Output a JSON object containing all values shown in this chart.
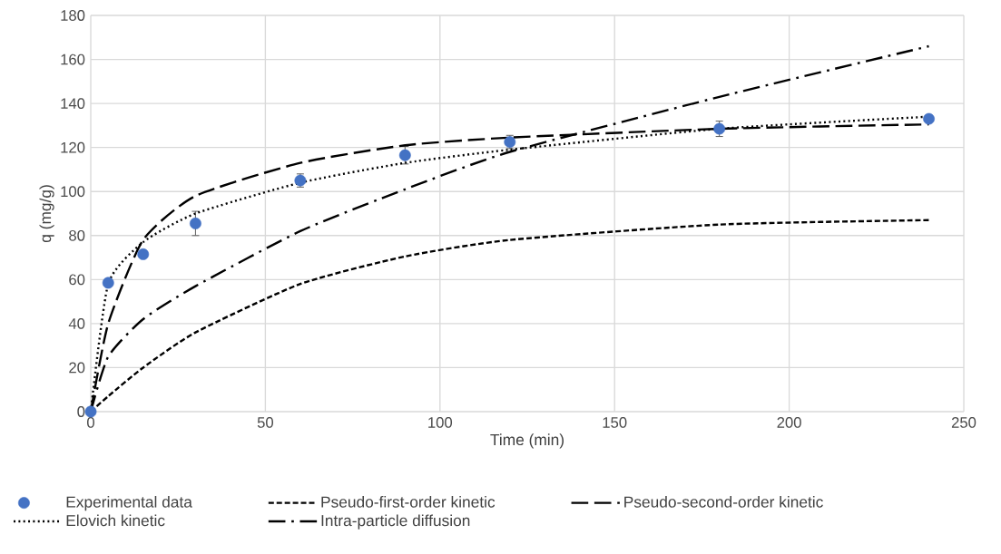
{
  "chart_data": {
    "type": "line",
    "xlabel": "Time (min)",
    "ylabel": "q (mg/g)",
    "xlim": [
      0,
      250
    ],
    "xticks": [
      0,
      50,
      100,
      150,
      200,
      250
    ],
    "ylim": [
      0,
      180
    ],
    "yticks": [
      0,
      20,
      40,
      60,
      80,
      100,
      120,
      140,
      160,
      180
    ],
    "grid": true,
    "legend": "bottom",
    "series": [
      {
        "name": "Experimental data",
        "type": "scatter",
        "color": "#4472c4",
        "marker": "circle",
        "x": [
          0,
          5,
          15,
          30,
          60,
          90,
          120,
          180,
          240
        ],
        "values": [
          0,
          58.5,
          71.5,
          85.5,
          105,
          116.5,
          122.5,
          128.5,
          133
        ],
        "errors": [
          null,
          null,
          null,
          5.5,
          3,
          4,
          3,
          3.5,
          null
        ]
      },
      {
        "name": "Pseudo-first-order kinetic",
        "color": "#000000",
        "line_style": "dashed",
        "x": [
          0,
          5,
          15,
          30,
          60,
          90,
          120,
          180,
          240
        ],
        "values": [
          0,
          7,
          20,
          36,
          58,
          70.5,
          78,
          85,
          87
        ]
      },
      {
        "name": "Pseudo-second-order kinetic",
        "color": "#000000",
        "line_style": "long_dashed",
        "x": [
          0,
          5,
          15,
          30,
          60,
          90,
          120,
          180,
          240
        ],
        "values": [
          0,
          40,
          78,
          98,
          113,
          121,
          124.5,
          128.5,
          130.5
        ]
      },
      {
        "name": "Elovich kinetic",
        "color": "#000000",
        "line_style": "dotted",
        "x": [
          0,
          5,
          15,
          30,
          60,
          90,
          120,
          180,
          240
        ],
        "values": [
          0,
          58,
          77,
          90,
          104,
          113,
          119,
          128.5,
          134
        ]
      },
      {
        "name": "Intra-particle diffusion",
        "color": "#000000",
        "line_style": "dash_dot",
        "x": [
          0,
          5,
          15,
          30,
          60,
          90,
          120,
          180,
          240
        ],
        "values": [
          0,
          25,
          42,
          57,
          82,
          101,
          118,
          143,
          166
        ]
      }
    ]
  }
}
